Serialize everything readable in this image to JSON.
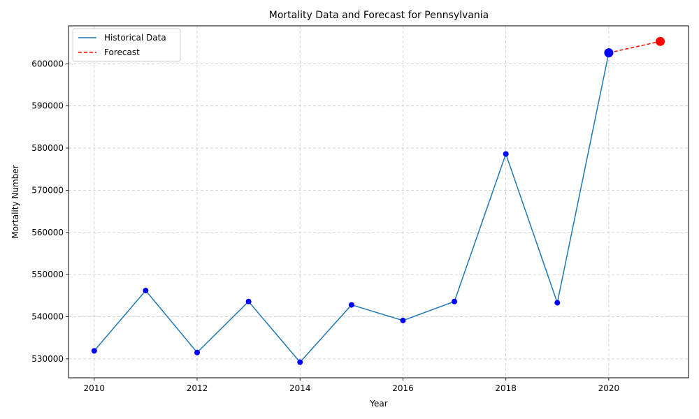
{
  "chart_data": {
    "type": "line",
    "title": "Mortality Data and Forecast for Pennsylvania",
    "xlabel": "Year",
    "ylabel": "Mortality Number",
    "xlim": [
      2009.5,
      2021.55
    ],
    "ylim": [
      525500,
      609000
    ],
    "x_ticks": [
      2010,
      2012,
      2014,
      2016,
      2018,
      2020
    ],
    "y_ticks": [
      530000,
      540000,
      550000,
      560000,
      570000,
      580000,
      590000,
      600000
    ],
    "grid": true,
    "legend_position": "top-left",
    "series": [
      {
        "name": "Historical Data",
        "style": "solid",
        "color": "#1f77b4",
        "marker_color": "#0000ff",
        "x": [
          2010,
          2011,
          2012,
          2013,
          2014,
          2015,
          2016,
          2017,
          2018,
          2019,
          2020
        ],
        "values": [
          531900,
          546200,
          531500,
          543600,
          529200,
          542800,
          539100,
          543600,
          578600,
          543300,
          602600
        ]
      },
      {
        "name": "Forecast",
        "style": "dashed",
        "color": "#ff0000",
        "marker_color": "#ff0000",
        "x": [
          2020,
          2021
        ],
        "values": [
          602600,
          605300
        ]
      }
    ]
  }
}
